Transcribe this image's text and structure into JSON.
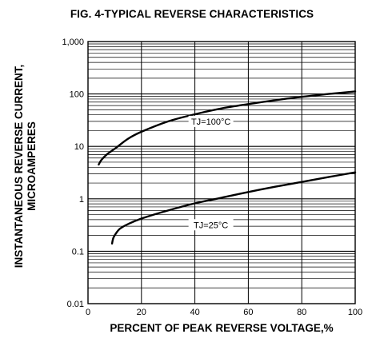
{
  "chart_data": {
    "type": "line",
    "title": "FIG. 4-TYPICAL REVERSE CHARACTERISTICS",
    "xlabel": "PERCENT OF PEAK REVERSE VOLTAGE,%",
    "ylabel_lines": [
      "INSTANTANEOUS REVERSE CURRENT,",
      "MICROAMPERES"
    ],
    "x_scale": "linear",
    "y_scale": "log",
    "xlim": [
      0,
      100
    ],
    "ylim": [
      0.01,
      1000
    ],
    "x_ticks": [
      {
        "value": 0,
        "label": "0"
      },
      {
        "value": 20,
        "label": "20"
      },
      {
        "value": 40,
        "label": "40"
      },
      {
        "value": 60,
        "label": "60"
      },
      {
        "value": 80,
        "label": "80"
      },
      {
        "value": 100,
        "label": "100"
      }
    ],
    "y_ticks": [
      {
        "value": 0.01,
        "label": "0.01"
      },
      {
        "value": 0.1,
        "label": "0.1"
      },
      {
        "value": 1,
        "label": "1"
      },
      {
        "value": 10,
        "label": "10"
      },
      {
        "value": 100,
        "label": "100"
      },
      {
        "value": 1000,
        "label": "1,000"
      }
    ],
    "x_grid_step": 20,
    "y_grid": "log-minor",
    "series": [
      {
        "name": "TJ=100°C",
        "x": [
          4,
          5,
          7,
          10,
          15,
          20,
          30,
          40,
          50,
          60,
          70,
          80,
          90,
          100
        ],
        "y": [
          4.5,
          5.5,
          7,
          9,
          14,
          19,
          30,
          41,
          53,
          64,
          76,
          88,
          100,
          112
        ],
        "label_at": [
          46,
          30
        ]
      },
      {
        "name": "TJ=25°C",
        "x": [
          9,
          9.5,
          10.5,
          12,
          15,
          20,
          30,
          40,
          50,
          60,
          70,
          80,
          90,
          100
        ],
        "y": [
          0.14,
          0.18,
          0.22,
          0.27,
          0.33,
          0.42,
          0.6,
          0.82,
          1.05,
          1.35,
          1.7,
          2.1,
          2.6,
          3.2
        ],
        "label_at": [
          46,
          0.32
        ]
      }
    ]
  }
}
